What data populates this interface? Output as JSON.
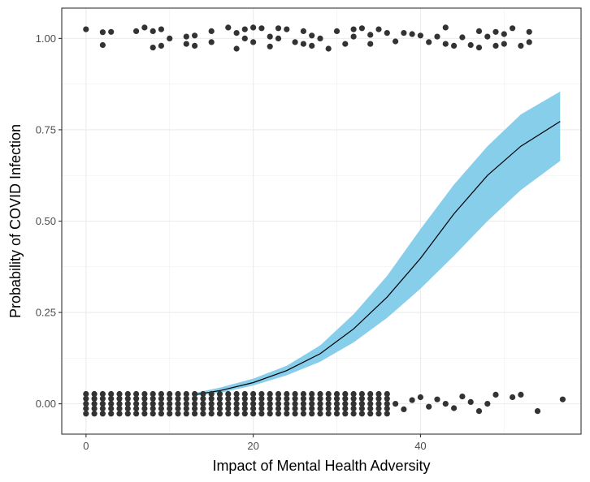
{
  "chart_data": {
    "type": "scatter",
    "title": "",
    "xlabel": "Impact of Mental Health Adversity",
    "ylabel": "Probability of COVID Infection",
    "xlim": [
      -2.9,
      59.2
    ],
    "ylim": [
      -0.083,
      1.083
    ],
    "x_ticks": [
      {
        "value": 0,
        "label": "0"
      },
      {
        "value": 20,
        "label": "20"
      },
      {
        "value": 40,
        "label": "40"
      }
    ],
    "y_ticks": [
      {
        "value": 0.0,
        "label": "0.00"
      },
      {
        "value": 0.25,
        "label": "0.25"
      },
      {
        "value": 0.5,
        "label": "0.50"
      },
      {
        "value": 0.75,
        "label": "0.75"
      },
      {
        "value": 1.0,
        "label": "1.00"
      }
    ],
    "grid": true,
    "legend": "none",
    "series": [
      {
        "name": "infected (jittered points)",
        "kind": "points",
        "color": "#333333",
        "y_value": 1,
        "x": [
          0,
          2,
          2,
          3,
          6,
          7,
          8,
          8,
          9,
          9,
          10,
          12,
          12,
          13,
          13,
          15,
          15,
          17,
          18,
          18,
          19,
          19,
          20,
          20,
          21,
          22,
          22,
          23,
          23,
          24,
          25,
          26,
          26,
          27,
          27,
          28,
          29,
          30,
          31,
          32,
          32,
          33,
          34,
          34,
          35,
          36,
          37,
          38,
          39,
          40,
          41,
          42,
          43,
          43,
          44,
          45,
          46,
          47,
          47,
          48,
          49,
          49,
          50,
          50,
          51,
          52,
          53,
          53
        ],
        "jitter": [
          0.025,
          0.017,
          -0.018,
          0.018,
          0.02,
          0.03,
          -0.025,
          0.02,
          0.025,
          -0.02,
          0.0,
          0.005,
          -0.015,
          0.008,
          -0.02,
          0.02,
          -0.01,
          0.03,
          0.015,
          -0.028,
          0.025,
          0.0,
          0.03,
          -0.01,
          0.028,
          0.005,
          -0.022,
          0.028,
          0.0,
          0.025,
          -0.01,
          0.02,
          -0.015,
          0.008,
          -0.02,
          0.0,
          -0.028,
          0.02,
          -0.015,
          0.025,
          0.005,
          0.028,
          0.01,
          -0.015,
          0.025,
          0.015,
          -0.008,
          0.015,
          0.012,
          0.008,
          -0.01,
          0.005,
          -0.015,
          0.03,
          -0.02,
          0.003,
          -0.018,
          0.02,
          -0.025,
          0.005,
          0.018,
          -0.02,
          0.012,
          -0.015,
          0.028,
          -0.02,
          0.018,
          -0.01
        ]
      },
      {
        "name": "not infected (jittered points)",
        "kind": "points",
        "color": "#333333",
        "y_value": 0,
        "x_dense_range": [
          0,
          36
        ],
        "jitter_levels": [
          0.027,
          0.014,
          0.0,
          -0.013,
          -0.027
        ],
        "x_sparse": [
          37,
          38,
          39,
          40,
          41,
          42,
          43,
          44,
          45,
          46,
          47,
          48,
          49,
          51,
          52,
          54,
          57
        ],
        "sparse_jitter": [
          0.0,
          -0.015,
          0.01,
          0.018,
          -0.008,
          0.012,
          0.0,
          -0.012,
          0.02,
          0.005,
          -0.02,
          0.0,
          0.025,
          0.018,
          0.025,
          -0.02,
          0.012
        ]
      },
      {
        "name": "logistic fit",
        "kind": "line",
        "color": "#000000",
        "x": [
          13,
          16,
          20,
          24,
          28,
          32,
          36,
          40,
          44,
          48,
          52,
          56.7
        ],
        "y": [
          0.025,
          0.036,
          0.058,
          0.091,
          0.137,
          0.205,
          0.292,
          0.398,
          0.52,
          0.625,
          0.705,
          0.773
        ]
      },
      {
        "name": "95% confidence band",
        "kind": "band",
        "color": "#87CEEB",
        "x": [
          13,
          16,
          20,
          24,
          28,
          32,
          36,
          40,
          44,
          48,
          52,
          56.7
        ],
        "ymin": [
          0.022,
          0.03,
          0.05,
          0.078,
          0.115,
          0.168,
          0.235,
          0.315,
          0.405,
          0.5,
          0.585,
          0.665
        ],
        "ymax": [
          0.03,
          0.044,
          0.069,
          0.104,
          0.16,
          0.245,
          0.35,
          0.478,
          0.6,
          0.705,
          0.792,
          0.855
        ]
      }
    ]
  }
}
